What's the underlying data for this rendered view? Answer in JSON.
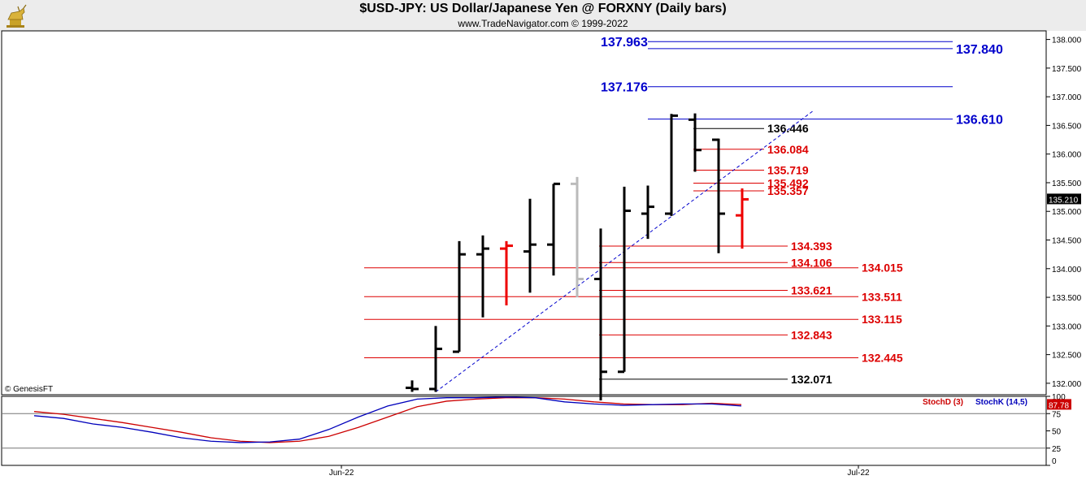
{
  "header": {
    "title": "$USD-JPY:  US Dollar/Japanese Yen @ FORXNY  (Daily bars)",
    "subtitle": "www.TradeNavigator.com © 1999-2022",
    "logo_icon": "golden-bull-icon"
  },
  "watermark": "© GenesisFT",
  "colors": {
    "up_bar": "#000000",
    "down_bar": "#bbbbbb",
    "last_bar": "#ee0000",
    "blue_level": "#0000cc",
    "red_level": "#dd0000",
    "black_level": "#000000",
    "stoch_d": "#cc0000",
    "stoch_k": "#0000bb"
  },
  "price_axis": {
    "ticks": [
      "138.000",
      "137.500",
      "137.000",
      "136.500",
      "136.000",
      "135.500",
      "135.000",
      "134.500",
      "134.000",
      "133.500",
      "133.000",
      "132.500",
      "132.000"
    ],
    "current_price": "135.210"
  },
  "time_axis": {
    "labels": [
      "Jun-22",
      "Jul-22"
    ]
  },
  "chart_data": {
    "type": "ohlc",
    "title": "$USD-JPY:  US Dollar/Japanese Yen @ FORXNY  (Daily bars)",
    "ylim": [
      131.8,
      138.15
    ],
    "bars": [
      {
        "day": 1,
        "open": 131.92,
        "high": 132.05,
        "low": 131.85,
        "close": 131.9,
        "style": "up"
      },
      {
        "day": 2,
        "open": 131.9,
        "high": 133.0,
        "low": 131.85,
        "close": 132.6,
        "style": "up"
      },
      {
        "day": 3,
        "open": 132.55,
        "high": 134.48,
        "low": 132.55,
        "close": 134.25,
        "style": "up"
      },
      {
        "day": 4,
        "open": 134.25,
        "high": 134.58,
        "low": 133.15,
        "close": 134.35,
        "style": "up"
      },
      {
        "day": 5,
        "open": 134.35,
        "high": 134.48,
        "low": 133.36,
        "close": 134.4,
        "style": "last"
      },
      {
        "day": 6,
        "open": 134.3,
        "high": 135.22,
        "low": 133.58,
        "close": 134.42,
        "style": "up"
      },
      {
        "day": 7,
        "open": 134.42,
        "high": 135.48,
        "low": 133.88,
        "close": 135.48,
        "style": "up"
      },
      {
        "day": 8,
        "open": 135.48,
        "high": 135.6,
        "low": 133.5,
        "close": 133.82,
        "style": "down"
      },
      {
        "day": 9,
        "open": 133.82,
        "high": 134.7,
        "low": 131.7,
        "close": 132.2,
        "style": "up"
      },
      {
        "day": 10,
        "open": 132.2,
        "high": 135.43,
        "low": 132.2,
        "close": 135.01,
        "style": "up"
      },
      {
        "day": 11,
        "open": 134.96,
        "high": 135.45,
        "low": 134.52,
        "close": 135.08,
        "style": "up"
      },
      {
        "day": 12,
        "open": 134.96,
        "high": 136.7,
        "low": 134.92,
        "close": 136.67,
        "style": "up"
      },
      {
        "day": 13,
        "open": 136.6,
        "high": 136.71,
        "low": 135.69,
        "close": 136.07,
        "style": "up"
      },
      {
        "day": 14,
        "open": 136.25,
        "high": 136.27,
        "low": 134.27,
        "close": 134.96,
        "style": "up"
      },
      {
        "day": 15,
        "open": 134.93,
        "high": 135.4,
        "low": 134.35,
        "close": 135.21,
        "style": "last"
      }
    ],
    "levels": [
      {
        "value": "137.963",
        "color": "blue"
      },
      {
        "value": "137.840",
        "color": "blue"
      },
      {
        "value": "137.176",
        "color": "blue"
      },
      {
        "value": "136.610",
        "color": "blue"
      },
      {
        "value": "136.446",
        "color": "black"
      },
      {
        "value": "136.084",
        "color": "red"
      },
      {
        "value": "135.719",
        "color": "red"
      },
      {
        "value": "135.492",
        "color": "red"
      },
      {
        "value": "135.357",
        "color": "red"
      },
      {
        "value": "134.393",
        "color": "red"
      },
      {
        "value": "134.106",
        "color": "red"
      },
      {
        "value": "134.015",
        "color": "red"
      },
      {
        "value": "133.621",
        "color": "red"
      },
      {
        "value": "133.511",
        "color": "red"
      },
      {
        "value": "133.115",
        "color": "red"
      },
      {
        "value": "132.843",
        "color": "red"
      },
      {
        "value": "132.445",
        "color": "red"
      },
      {
        "value": "132.071",
        "color": "black"
      }
    ],
    "trendline": {
      "from": {
        "day": 2,
        "price": 131.85
      },
      "to": {
        "day": 18,
        "price": 136.75
      },
      "color": "blue",
      "style": "dashed"
    },
    "stochastic": {
      "ylim": [
        0,
        100
      ],
      "ticks": [
        "100",
        "75",
        "50",
        "25",
        "0"
      ],
      "current_value": "87.78",
      "series": [
        {
          "name": "StochD (3)",
          "color": "red",
          "values": [
            78,
            74,
            68,
            62,
            55,
            48,
            40,
            35,
            33,
            35,
            42,
            55,
            70,
            85,
            93,
            96,
            98,
            98,
            96,
            92,
            89,
            88,
            88,
            90,
            88
          ]
        },
        {
          "name": "StochK (14,5)",
          "color": "blue",
          "values": [
            72,
            68,
            60,
            55,
            48,
            40,
            35,
            33,
            34,
            38,
            52,
            70,
            86,
            96,
            98,
            98,
            99,
            98,
            92,
            89,
            87,
            88,
            89,
            89,
            86
          ]
        }
      ]
    }
  }
}
